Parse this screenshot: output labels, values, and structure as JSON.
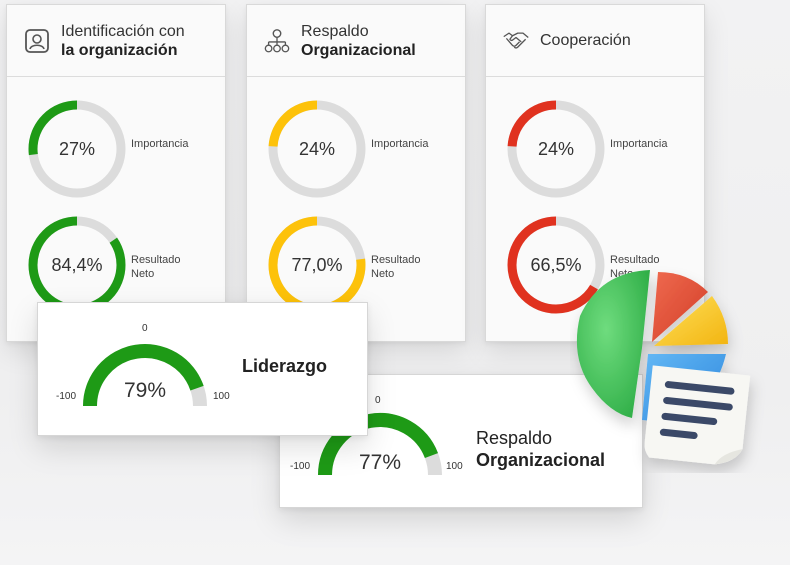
{
  "colors": {
    "green": "#1e9a16",
    "yellow": "#fdc20a",
    "red": "#e0321f",
    "track": "#dcdcdc"
  },
  "cards": [
    {
      "icon": "user-badge-icon",
      "title_line1": "Identificación con",
      "title_line2": "la organización",
      "importance": {
        "value": "27%",
        "fraction": 0.27,
        "label": "Importancia"
      },
      "result": {
        "value": "84,4%",
        "fraction": 0.844,
        "label_line1": "Resultado",
        "label_line2": "Neto"
      },
      "color": "#1e9a16"
    },
    {
      "icon": "org-chart-icon",
      "title_line1": "Respaldo",
      "title_line2": "Organizacional",
      "importance": {
        "value": "24%",
        "fraction": 0.24,
        "label": "Importancia"
      },
      "result": {
        "value": "77,0%",
        "fraction": 0.77,
        "label_line1": "Resultado",
        "label_line2": "Neto"
      },
      "color": "#fdc20a"
    },
    {
      "icon": "handshake-icon",
      "title_line1": "Cooperación",
      "title_line2": "",
      "importance": {
        "value": "24%",
        "fraction": 0.24,
        "label": "Importancia"
      },
      "result": {
        "value": "66,5%",
        "fraction": 0.665,
        "label_line1": "Resultado",
        "label_line2": "Neto"
      },
      "color": "#e0321f"
    }
  ],
  "gauges": [
    {
      "title_bold": "Liderazgo",
      "title_normal": "",
      "value": "79%",
      "fraction": 0.79,
      "min_label": "-100",
      "mid_label": "0",
      "max_label": "100"
    },
    {
      "title_normal": "Respaldo",
      "title_bold": "Organizacional",
      "value": "77%",
      "fraction": 0.77,
      "min_label": "-100",
      "mid_label": "0",
      "max_label": "100"
    }
  ],
  "illustration": {
    "icon": "pie-chart-report-icon"
  }
}
